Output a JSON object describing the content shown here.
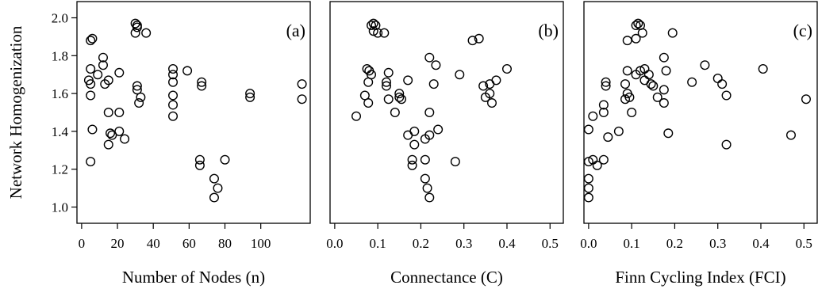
{
  "y_title": "Network Homogenization",
  "y_ticks": [
    1.0,
    1.2,
    1.4,
    1.6,
    1.8,
    2.0
  ],
  "y_tick_labels": [
    "1.0",
    "1.2",
    "1.4",
    "1.6",
    "1.8",
    "2.0"
  ],
  "chart_data": [
    {
      "type": "scatter",
      "panel_label": "(a)",
      "xlabel": "Number of Nodes (n)",
      "ylabel": "Network Homogenization",
      "xlim": [
        0,
        125
      ],
      "ylim": [
        1.0,
        2.0
      ],
      "x_ticks": [
        0,
        20,
        40,
        60,
        80,
        100
      ],
      "x_tick_labels": [
        "0",
        "20",
        "40",
        "60",
        "80",
        "100"
      ],
      "points": [
        [
          5,
          1.88
        ],
        [
          6,
          1.89
        ],
        [
          5,
          1.73
        ],
        [
          4,
          1.67
        ],
        [
          5,
          1.65
        ],
        [
          5,
          1.59
        ],
        [
          6,
          1.41
        ],
        [
          5,
          1.24
        ],
        [
          9,
          1.7
        ],
        [
          12,
          1.79
        ],
        [
          12,
          1.75
        ],
        [
          13,
          1.65
        ],
        [
          15,
          1.67
        ],
        [
          21,
          1.71
        ],
        [
          15,
          1.5
        ],
        [
          21,
          1.5
        ],
        [
          16,
          1.39
        ],
        [
          17,
          1.38
        ],
        [
          15,
          1.33
        ],
        [
          21,
          1.4
        ],
        [
          24,
          1.36
        ],
        [
          30,
          1.97
        ],
        [
          31,
          1.96
        ],
        [
          31,
          1.95
        ],
        [
          30,
          1.92
        ],
        [
          36,
          1.92
        ],
        [
          31,
          1.64
        ],
        [
          31,
          1.62
        ],
        [
          33,
          1.58
        ],
        [
          32,
          1.55
        ],
        [
          51,
          1.73
        ],
        [
          51,
          1.7
        ],
        [
          51,
          1.66
        ],
        [
          51,
          1.59
        ],
        [
          51,
          1.54
        ],
        [
          51,
          1.48
        ],
        [
          59,
          1.72
        ],
        [
          67,
          1.66
        ],
        [
          67,
          1.64
        ],
        [
          66,
          1.25
        ],
        [
          66,
          1.22
        ],
        [
          80,
          1.25
        ],
        [
          74,
          1.15
        ],
        [
          76,
          1.1
        ],
        [
          74,
          1.05
        ],
        [
          94,
          1.6
        ],
        [
          94,
          1.58
        ],
        [
          123,
          1.65
        ],
        [
          123,
          1.57
        ]
      ]
    },
    {
      "type": "scatter",
      "panel_label": "(b)",
      "xlabel": "Connectance (C)",
      "ylabel": "Network Homogenization",
      "xlim": [
        0.0,
        0.52
      ],
      "ylim": [
        1.0,
        2.0
      ],
      "x_ticks": [
        0.0,
        0.1,
        0.2,
        0.3,
        0.4,
        0.5
      ],
      "x_tick_labels": [
        "0.0",
        "0.1",
        "0.2",
        "0.3",
        "0.4",
        "0.5"
      ],
      "points": [
        [
          0.085,
          1.96
        ],
        [
          0.09,
          1.97
        ],
        [
          0.095,
          1.96
        ],
        [
          0.09,
          1.93
        ],
        [
          0.1,
          1.92
        ],
        [
          0.115,
          1.92
        ],
        [
          0.075,
          1.73
        ],
        [
          0.08,
          1.72
        ],
        [
          0.085,
          1.7
        ],
        [
          0.078,
          1.66
        ],
        [
          0.07,
          1.59
        ],
        [
          0.078,
          1.55
        ],
        [
          0.05,
          1.48
        ],
        [
          0.12,
          1.66
        ],
        [
          0.12,
          1.64
        ],
        [
          0.125,
          1.71
        ],
        [
          0.125,
          1.57
        ],
        [
          0.14,
          1.5
        ],
        [
          0.15,
          1.6
        ],
        [
          0.15,
          1.58
        ],
        [
          0.155,
          1.57
        ],
        [
          0.17,
          1.67
        ],
        [
          0.17,
          1.38
        ],
        [
          0.185,
          1.4
        ],
        [
          0.18,
          1.25
        ],
        [
          0.18,
          1.22
        ],
        [
          0.185,
          1.33
        ],
        [
          0.21,
          1.36
        ],
        [
          0.22,
          1.38
        ],
        [
          0.24,
          1.41
        ],
        [
          0.21,
          1.25
        ],
        [
          0.21,
          1.15
        ],
        [
          0.215,
          1.1
        ],
        [
          0.22,
          1.05
        ],
        [
          0.22,
          1.79
        ],
        [
          0.235,
          1.75
        ],
        [
          0.23,
          1.65
        ],
        [
          0.22,
          1.5
        ],
        [
          0.28,
          1.24
        ],
        [
          0.29,
          1.7
        ],
        [
          0.32,
          1.88
        ],
        [
          0.335,
          1.89
        ],
        [
          0.345,
          1.64
        ],
        [
          0.35,
          1.58
        ],
        [
          0.36,
          1.65
        ],
        [
          0.36,
          1.6
        ],
        [
          0.365,
          1.55
        ],
        [
          0.375,
          1.67
        ],
        [
          0.4,
          1.73
        ]
      ]
    },
    {
      "type": "scatter",
      "panel_label": "(c)",
      "xlabel": "Finn Cycling Index (FCI)",
      "ylabel": "Network Homogenization",
      "xlim": [
        0.0,
        0.52
      ],
      "ylim": [
        1.0,
        2.0
      ],
      "x_ticks": [
        0.0,
        0.1,
        0.2,
        0.3,
        0.4,
        0.5
      ],
      "x_tick_labels": [
        "0.0",
        "0.1",
        "0.2",
        "0.3",
        "0.4",
        "0.5"
      ],
      "points": [
        [
          0.0,
          1.41
        ],
        [
          0.0,
          1.24
        ],
        [
          0.0,
          1.15
        ],
        [
          0.0,
          1.1
        ],
        [
          0.0,
          1.05
        ],
        [
          0.01,
          1.25
        ],
        [
          0.02,
          1.22
        ],
        [
          0.01,
          1.48
        ],
        [
          0.035,
          1.25
        ],
        [
          0.035,
          1.54
        ],
        [
          0.035,
          1.5
        ],
        [
          0.04,
          1.66
        ],
        [
          0.04,
          1.64
        ],
        [
          0.045,
          1.37
        ],
        [
          0.07,
          1.4
        ],
        [
          0.085,
          1.65
        ],
        [
          0.09,
          1.72
        ],
        [
          0.085,
          1.57
        ],
        [
          0.09,
          1.6
        ],
        [
          0.095,
          1.58
        ],
        [
          0.09,
          1.88
        ],
        [
          0.11,
          1.89
        ],
        [
          0.1,
          1.5
        ],
        [
          0.11,
          1.96
        ],
        [
          0.115,
          1.97
        ],
        [
          0.12,
          1.96
        ],
        [
          0.125,
          1.92
        ],
        [
          0.195,
          1.92
        ],
        [
          0.11,
          1.7
        ],
        [
          0.12,
          1.72
        ],
        [
          0.13,
          1.73
        ],
        [
          0.13,
          1.67
        ],
        [
          0.14,
          1.7
        ],
        [
          0.145,
          1.65
        ],
        [
          0.15,
          1.64
        ],
        [
          0.16,
          1.58
        ],
        [
          0.175,
          1.79
        ],
        [
          0.18,
          1.72
        ],
        [
          0.175,
          1.62
        ],
        [
          0.175,
          1.55
        ],
        [
          0.185,
          1.39
        ],
        [
          0.24,
          1.66
        ],
        [
          0.27,
          1.75
        ],
        [
          0.3,
          1.68
        ],
        [
          0.31,
          1.65
        ],
        [
          0.32,
          1.59
        ],
        [
          0.32,
          1.33
        ],
        [
          0.405,
          1.73
        ],
        [
          0.47,
          1.38
        ],
        [
          0.505,
          1.57
        ]
      ]
    }
  ]
}
